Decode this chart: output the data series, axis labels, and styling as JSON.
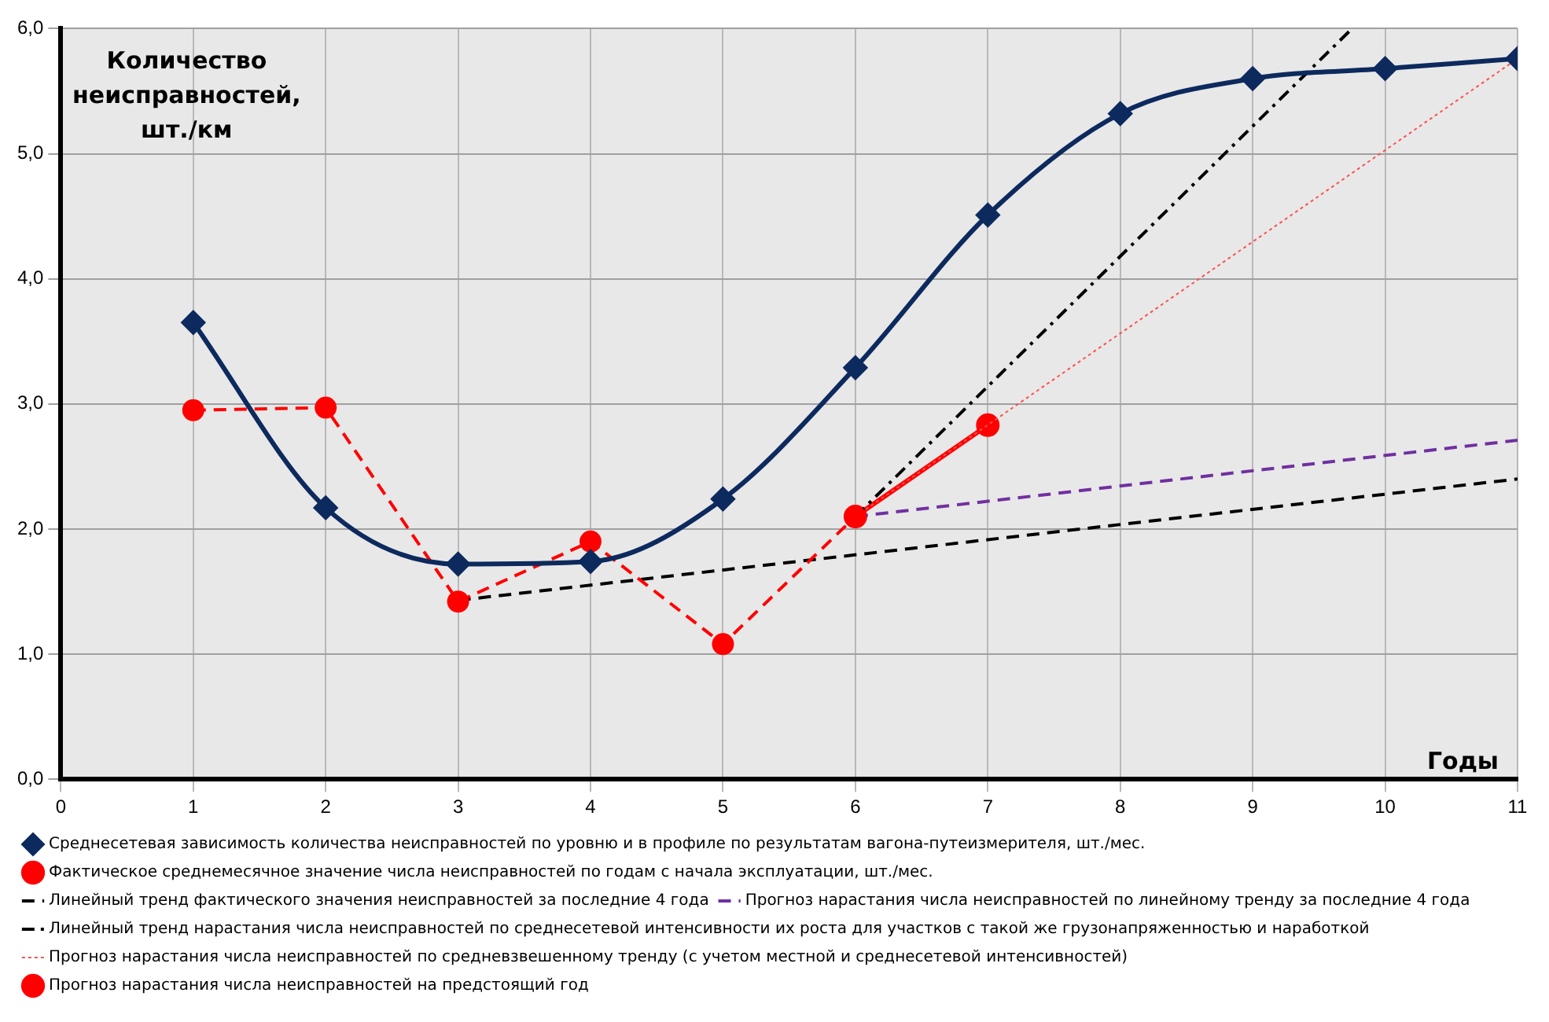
{
  "chart_data": {
    "type": "line",
    "ylabel": "Количество неисправностей, шт./км",
    "xlabel": "Годы",
    "xlim": [
      0,
      11
    ],
    "xticks": [
      0,
      1,
      2,
      3,
      4,
      5,
      6,
      7,
      8,
      9,
      10,
      11
    ],
    "ylim": [
      0,
      6
    ],
    "yticks": [
      {
        "value": 0,
        "label": "0,0"
      },
      {
        "value": 1,
        "label": "1,0"
      },
      {
        "value": 2,
        "label": "2,0"
      },
      {
        "value": 3,
        "label": "3,0"
      },
      {
        "value": 4,
        "label": "4,0"
      },
      {
        "value": 5,
        "label": "5,0"
      },
      {
        "value": 6,
        "label": "6,0"
      }
    ],
    "grid": true,
    "legend": "bottom",
    "series": [
      {
        "name": "Среднесетевая зависимость количества неисправностей по уровню и в профиле по результатам вагона-путеизмерителя, шт./мес.",
        "color": "#0d2a5e",
        "marker": "diamond",
        "line_style": "solid",
        "x": [
          1,
          2,
          3,
          4,
          5,
          6,
          7,
          8,
          9,
          10,
          11
        ],
        "values": [
          3.65,
          2.17,
          1.72,
          1.74,
          2.24,
          3.29,
          4.51,
          5.32,
          5.6,
          5.68,
          5.76
        ]
      },
      {
        "name": "Фактическое среднемесячное значение числа неисправностей по годам с начала эксплуатации, шт./мес.",
        "color": "#ff0000",
        "marker": "circle",
        "line_style": "dashed",
        "x": [
          1,
          2,
          3,
          4,
          5,
          6
        ],
        "values": [
          2.95,
          2.97,
          1.42,
          1.9,
          1.08,
          2.1
        ]
      },
      {
        "name": "Линейный тренд фактического значения неисправностей за последние 4 года",
        "color": "#000000",
        "marker": "none",
        "line_style": "dashed",
        "x": [
          3,
          11
        ],
        "values": [
          1.43,
          2.4
        ]
      },
      {
        "name": "Прогноз нарастания числа неисправностей по линейному тренду за последние 4 года",
        "color": "#7030a0",
        "marker": "none",
        "line_style": "dashed",
        "x": [
          6,
          11
        ],
        "values": [
          2.1,
          2.71
        ]
      },
      {
        "name": "Линейный тренд нарастания числа неисправностей по среднесетевой интенсивности их роста для участков с такой же грузонапряженностью и наработкой",
        "color": "#000000",
        "marker": "none",
        "line_style": "dashdot",
        "x": [
          6,
          9.75
        ],
        "values": [
          2.1,
          6.0
        ]
      },
      {
        "name": "Прогноз нарастания числа неисправностей по средневзвешенному тренду (с учетом местной и среднесетевой интенсивностей)",
        "color": "#ff5050",
        "marker": "none",
        "line_style": "dotted",
        "x": [
          6,
          11
        ],
        "values": [
          2.1,
          5.76
        ]
      },
      {
        "name": "Прогноз нарастания числа неисправностей на предстоящий год",
        "color": "#ff0000",
        "marker": "circle",
        "line_style": "solid",
        "x": [
          6,
          7
        ],
        "values": [
          2.1,
          2.83
        ]
      }
    ]
  }
}
